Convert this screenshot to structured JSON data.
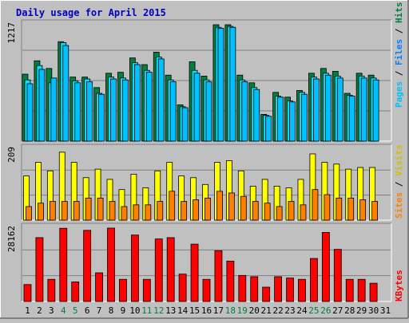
{
  "title": "Daily usage for April 2015",
  "colors": {
    "background": "#c0c0c0",
    "panel": "#c0c0c0",
    "hits": "#008040",
    "files": "#00e0ff",
    "pages": "#00c0ff",
    "visits": "#ffff00",
    "sites": "#ff8000",
    "kbytes": "#ff0000",
    "title_text": "#0000c0",
    "weekend_text": "#008040",
    "text": "#000000"
  },
  "chart_data": [
    {
      "type": "bar",
      "name": "hits-files-pages",
      "ymax_label": "1217",
      "ylim": [
        0,
        1217
      ],
      "legend": [
        "Hits",
        "Files",
        "Pages"
      ],
      "categories": [
        "1",
        "2",
        "3",
        "4",
        "5",
        "6",
        "7",
        "8",
        "9",
        "10",
        "11",
        "12",
        "13",
        "14",
        "15",
        "16",
        "17",
        "18",
        "19",
        "20",
        "21",
        "22",
        "23",
        "24",
        "25",
        "26",
        "27",
        "28",
        "29",
        "30",
        "31"
      ],
      "series": [
        {
          "name": "Hits",
          "values": [
            700,
            840,
            760,
            1040,
            670,
            670,
            560,
            710,
            720,
            870,
            800,
            930,
            690,
            380,
            830,
            680,
            1217,
            1217,
            690,
            610,
            280,
            510,
            460,
            530,
            710,
            760,
            730,
            500,
            710,
            690,
            0
          ]
        },
        {
          "name": "Files",
          "values": [
            640,
            790,
            610,
            1030,
            630,
            650,
            500,
            670,
            660,
            820,
            740,
            880,
            640,
            360,
            740,
            640,
            1190,
            1200,
            640,
            560,
            270,
            470,
            420,
            510,
            670,
            710,
            680,
            480,
            680,
            660,
            0
          ]
        },
        {
          "name": "Pages",
          "values": [
            600,
            750,
            660,
            1000,
            610,
            620,
            490,
            650,
            640,
            800,
            720,
            860,
            620,
            350,
            710,
            620,
            1180,
            1190,
            620,
            540,
            260,
            460,
            410,
            490,
            650,
            690,
            660,
            470,
            660,
            640,
            0
          ]
        }
      ]
    },
    {
      "type": "bar",
      "name": "visits-sites",
      "ymax_label": "209",
      "ylim": [
        0,
        209
      ],
      "legend": [
        "Visits",
        "Sites"
      ],
      "categories": [
        "1",
        "2",
        "3",
        "4",
        "5",
        "6",
        "7",
        "8",
        "9",
        "10",
        "11",
        "12",
        "13",
        "14",
        "15",
        "16",
        "17",
        "18",
        "19",
        "20",
        "21",
        "22",
        "23",
        "24",
        "25",
        "26",
        "27",
        "28",
        "29",
        "30",
        "31"
      ],
      "series": [
        {
          "name": "Visits",
          "values": [
            130,
            170,
            145,
            200,
            170,
            125,
            150,
            120,
            90,
            135,
            95,
            145,
            170,
            130,
            125,
            105,
            170,
            175,
            145,
            100,
            120,
            100,
            95,
            120,
            195,
            170,
            165,
            150,
            155,
            155,
            0
          ]
        },
        {
          "name": "Sites",
          "values": [
            40,
            50,
            55,
            55,
            55,
            65,
            65,
            55,
            40,
            45,
            45,
            55,
            85,
            55,
            60,
            65,
            85,
            80,
            70,
            55,
            50,
            40,
            55,
            45,
            90,
            75,
            65,
            65,
            60,
            55,
            0
          ]
        }
      ]
    },
    {
      "type": "bar",
      "name": "kbytes",
      "ymax_label": "28162",
      "ylim": [
        0,
        28162
      ],
      "legend": [
        "KBytes"
      ],
      "categories": [
        "1",
        "2",
        "3",
        "4",
        "5",
        "6",
        "7",
        "8",
        "9",
        "10",
        "11",
        "12",
        "13",
        "14",
        "15",
        "16",
        "17",
        "18",
        "19",
        "20",
        "21",
        "22",
        "23",
        "24",
        "25",
        "26",
        "27",
        "28",
        "29",
        "30",
        "31"
      ],
      "series": [
        {
          "name": "KBytes",
          "values": [
            6500,
            24500,
            8500,
            28100,
            7500,
            27300,
            11000,
            28162,
            8500,
            25500,
            8500,
            24000,
            24500,
            10500,
            22000,
            8500,
            19500,
            15500,
            10000,
            9500,
            5500,
            9500,
            9000,
            8500,
            16500,
            26500,
            20000,
            8500,
            8500,
            7000,
            0
          ]
        }
      ]
    }
  ],
  "x_ticks": [
    "1",
    "2",
    "3",
    "4",
    "5",
    "6",
    "7",
    "8",
    "9",
    "10",
    "11",
    "12",
    "13",
    "14",
    "15",
    "16",
    "17",
    "18",
    "19",
    "20",
    "21",
    "22",
    "23",
    "24",
    "25",
    "26",
    "27",
    "28",
    "29",
    "30",
    "31"
  ],
  "weekend_days": [
    4,
    5,
    11,
    12,
    18,
    19,
    25,
    26
  ],
  "right_labels": {
    "panel1": {
      "pages": "Pages",
      "files": "Files",
      "hits": "Hits",
      "sep": " / "
    },
    "panel2": {
      "sites": "Sites",
      "visits": "Visits",
      "sep": " / "
    },
    "panel3": {
      "kbytes": "KBytes"
    }
  }
}
